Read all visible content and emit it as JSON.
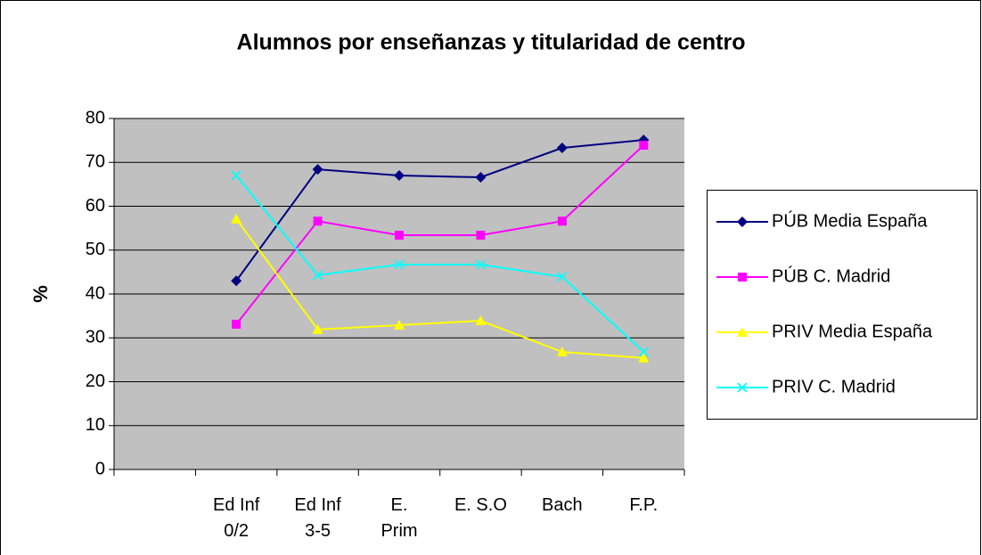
{
  "chart_data": {
    "type": "line",
    "title": "Alumnos por enseñanzas y titularidad de centro",
    "y_label": "%",
    "categories": [
      null,
      "Ed Inf\n0/2",
      "Ed Inf\n3-5",
      "E.\nPrim",
      "E. S.O",
      "Bach",
      "F.P."
    ],
    "series": [
      {
        "name": "PÚB Media España",
        "color": "#000080",
        "marker": "diamond",
        "values": [
          null,
          43.0,
          68.4,
          67.0,
          66.6,
          73.3,
          75.1
        ]
      },
      {
        "name": "PÚB C. Madrid",
        "color": "#ff00ff",
        "marker": "square",
        "values": [
          null,
          33.1,
          56.6,
          53.4,
          53.4,
          56.6,
          73.9
        ]
      },
      {
        "name": "PRIV Media España",
        "color": "#ffff00",
        "marker": "triangle",
        "values": [
          null,
          57.1,
          31.9,
          32.9,
          33.9,
          26.8,
          25.4
        ]
      },
      {
        "name": "PRIV C. Madrid",
        "color": "#00ffff",
        "marker": "x",
        "values": [
          null,
          67.0,
          44.3,
          46.7,
          46.7,
          43.9,
          26.8
        ]
      }
    ],
    "ylim": [
      0,
      80
    ],
    "yticks": [
      0,
      10,
      20,
      30,
      40,
      50,
      60,
      70,
      80
    ],
    "grid": true,
    "legend": "right",
    "plot_background": "#c0c0c0"
  }
}
